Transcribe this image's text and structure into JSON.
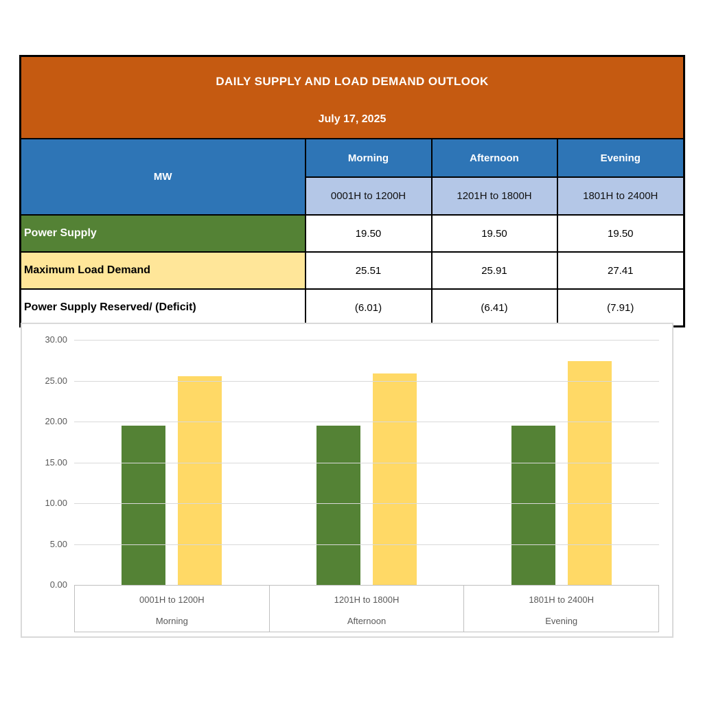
{
  "report": {
    "title": "DAILY SUPPLY AND LOAD DEMAND OUTLOOK",
    "date": "July 17, 2025"
  },
  "table": {
    "corner_header": "MW",
    "columns": [
      {
        "period": "Morning",
        "range": "0001H to 1200H"
      },
      {
        "period": "Afternoon",
        "range": "1201H to 1800H"
      },
      {
        "period": "Evening",
        "range": "1801H to 2400H"
      }
    ],
    "rows": [
      {
        "label": "Power Supply",
        "values": [
          "19.50",
          "19.50",
          "19.50"
        ]
      },
      {
        "label": "Maximum Load Demand",
        "values": [
          "25.51",
          "25.91",
          "27.41"
        ]
      },
      {
        "label": "Power Supply Reserved/ (Deficit)",
        "values": [
          "(6.01)",
          "(6.41)",
          "(7.91)"
        ]
      }
    ]
  },
  "chart_data": {
    "type": "bar",
    "title": "",
    "categories": [
      "0001H to 1200H",
      "1201H to 1800H",
      "1801H to 2400H"
    ],
    "category_groups": [
      "Morning",
      "Afternoon",
      "Evening"
    ],
    "series": [
      {
        "name": "Power Supply",
        "color": "#548235",
        "values": [
          19.5,
          19.5,
          19.5
        ]
      },
      {
        "name": "Maximum Load Demand",
        "color": "#FFD966",
        "values": [
          25.51,
          25.91,
          27.41
        ]
      }
    ],
    "ylim": [
      0,
      30
    ],
    "yticks": [
      30,
      25,
      20,
      15,
      10,
      5,
      0
    ],
    "ytick_labels": [
      "30.00",
      "25.00",
      "20.00",
      "15.00",
      "10.00",
      "5.00",
      "0.00"
    ],
    "grid": true,
    "legend": "none"
  },
  "colors": {
    "header_orange": "#C55A11",
    "header_blue": "#2E75B6",
    "subheader_blue": "#B4C7E7",
    "supply_row_green": "#548235",
    "demand_row_yellow": "#FFE699",
    "bar_green": "#548235",
    "bar_yellow": "#FFD966",
    "chart_text_gray": "#595959",
    "gridline_gray": "#D9D9D9",
    "axis_border_gray": "#BFBFBF",
    "table_border": "#000000"
  }
}
